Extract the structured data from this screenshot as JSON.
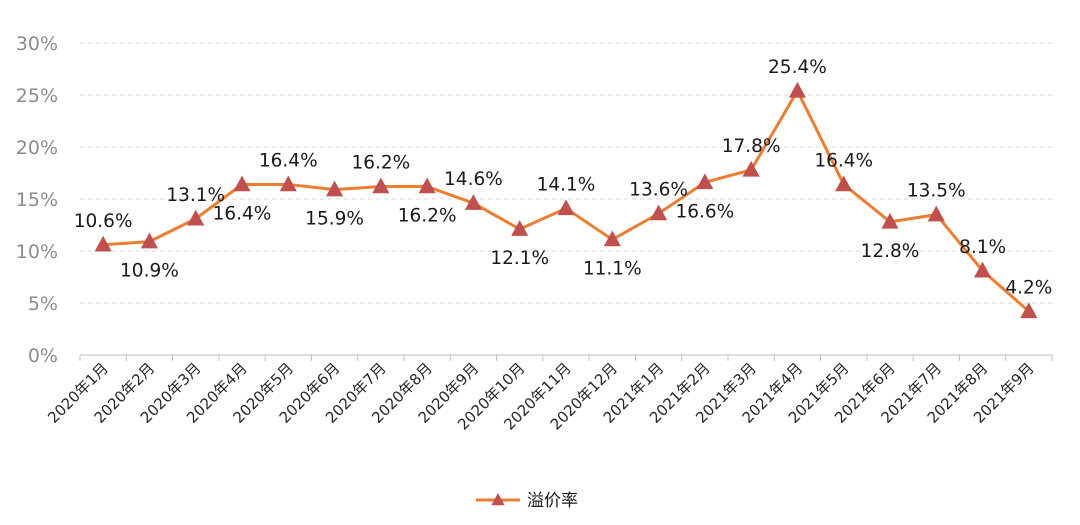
{
  "chart_data": {
    "type": "line",
    "title": "",
    "xlabel": "",
    "ylabel": "",
    "categories": [
      "2020年1月",
      "2020年2月",
      "2020年3月",
      "2020年4月",
      "2020年5月",
      "2020年6月",
      "2020年7月",
      "2020年8月",
      "2020年9月",
      "2020年10月",
      "2020年11月",
      "2020年12月",
      "2021年1月",
      "2021年2月",
      "2021年3月",
      "2021年4月",
      "2021年5月",
      "2021年6月",
      "2021年7月",
      "2021年8月",
      "2021年9月"
    ],
    "series": [
      {
        "name": "溢价率",
        "values": [
          10.6,
          10.9,
          13.1,
          16.4,
          16.4,
          15.9,
          16.2,
          16.2,
          14.6,
          12.1,
          14.1,
          11.1,
          13.6,
          16.6,
          17.8,
          25.4,
          16.4,
          12.8,
          13.5,
          8.1,
          4.2
        ],
        "labels": [
          "10.6%",
          "10.9%",
          "13.1%",
          "16.4%",
          "16.4%",
          "15.9%",
          "16.2%",
          "16.2%",
          "14.6%",
          "12.1%",
          "14.1%",
          "11.1%",
          "13.6%",
          "16.6%",
          "17.8%",
          "25.4%",
          "16.4%",
          "12.8%",
          "13.5%",
          "8.1%",
          "4.2%"
        ],
        "line_color": "#ed7d31",
        "marker_color": "#c0504d",
        "marker": "triangle"
      }
    ],
    "ylim": [
      0,
      30
    ],
    "yticks": [
      "0%",
      "5%",
      "10%",
      "15%",
      "20%",
      "25%",
      "30%"
    ],
    "ytick_values": [
      0,
      5,
      10,
      15,
      20,
      25,
      30
    ],
    "grid": true,
    "legend": "bottom-center"
  }
}
